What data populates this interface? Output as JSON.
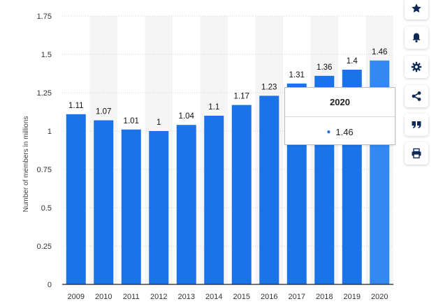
{
  "chart_data": {
    "type": "bar",
    "title": "",
    "xlabel": "",
    "ylabel": "Number of members in millions",
    "categories": [
      "2009",
      "2010",
      "2011",
      "2012",
      "2013",
      "2014",
      "2015",
      "2016",
      "2017",
      "2018",
      "2019",
      "2020"
    ],
    "values": [
      1.11,
      1.07,
      1.01,
      1,
      1.04,
      1.1,
      1.17,
      1.23,
      1.31,
      1.36,
      1.4,
      1.46
    ],
    "value_labels": [
      "1.11",
      "1.07",
      "1.01",
      "1",
      "1.04",
      "1.1",
      "1.17",
      "1.23",
      "1.31",
      "1.36",
      "1.4",
      "1.46"
    ],
    "ylim": [
      0,
      1.75
    ],
    "yticks": [
      "0",
      "0.25",
      "0.5",
      "0.75",
      "1",
      "1.25",
      "1.5",
      "1.75"
    ],
    "ytick_values": [
      0,
      0.25,
      0.5,
      0.75,
      1,
      1.25,
      1.5,
      1.75
    ],
    "grid": true,
    "highlighted_category": "2020",
    "colors": {
      "bar": "#1a73e8",
      "bar_highlight": "#3388f2",
      "grid": "#d6d6d6",
      "band": "#f5f5f5"
    }
  },
  "tooltip": {
    "title": "2020",
    "value": "1.46"
  },
  "tools": [
    {
      "name": "star-icon"
    },
    {
      "name": "bell-icon"
    },
    {
      "name": "gear-icon"
    },
    {
      "name": "share-icon"
    },
    {
      "name": "quote-icon"
    },
    {
      "name": "print-icon"
    }
  ]
}
